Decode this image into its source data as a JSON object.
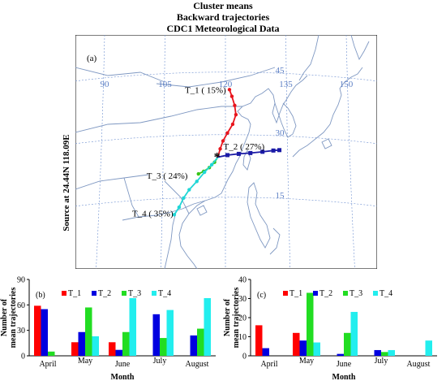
{
  "header": {
    "line1": "Cluster means",
    "line2": "Backward trajectories",
    "line3": "CDC1 Meteorological Data"
  },
  "side_label": "Source  at  24.44N 118.09E",
  "map": {
    "panel_label": "(a)",
    "lon_labels": [
      "90",
      "105",
      "120",
      "135",
      "150"
    ],
    "lat_labels": [
      "45",
      "30",
      "15"
    ],
    "clusters": [
      {
        "label": "T_1  ( 15%)",
        "color": "#e8141c",
        "path": [
          [
            118.1,
            24.4
          ],
          [
            118.7,
            26.4
          ],
          [
            119.4,
            28.3
          ],
          [
            120.5,
            30.2
          ],
          [
            121.8,
            32.3
          ],
          [
            122.6,
            34.6
          ],
          [
            122.3,
            36.8
          ],
          [
            121.6,
            39.0
          ],
          [
            121.0,
            40.6
          ]
        ]
      },
      {
        "label": "T_2  ( 27%)",
        "color": "#1a1aa6",
        "path": [
          [
            118.1,
            24.4
          ],
          [
            120.5,
            24.9
          ],
          [
            123.3,
            25.2
          ],
          [
            126.2,
            25.4
          ],
          [
            129.2,
            25.7
          ],
          [
            131.9,
            26.0
          ],
          [
            133.4,
            26.1
          ]
        ]
      },
      {
        "label": "T_3  ( 24%)",
        "color": "#38c418",
        "path": [
          [
            118.1,
            24.4
          ],
          [
            117.3,
            23.2
          ],
          [
            116.0,
            21.9
          ],
          [
            114.6,
            21.0
          ],
          [
            113.3,
            20.4
          ]
        ]
      },
      {
        "label": "T_4  ( 35%)",
        "color": "#20d6d6",
        "path": [
          [
            118.1,
            24.4
          ],
          [
            116.6,
            22.6
          ],
          [
            114.8,
            20.8
          ],
          [
            112.9,
            18.6
          ],
          [
            111.0,
            16.6
          ],
          [
            109.6,
            14.6
          ],
          [
            108.5,
            12.4
          ],
          [
            107.3,
            10.6
          ]
        ]
      }
    ],
    "source_marker": "source-star"
  },
  "chart_data": [
    {
      "type": "bar",
      "panel_label": "(b)",
      "categories": [
        "April",
        "May",
        "June",
        "July",
        "August"
      ],
      "series": [
        {
          "name": "T_1",
          "color": "#ff0000",
          "values": [
            59,
            16,
            16,
            0,
            0
          ]
        },
        {
          "name": "T_2",
          "color": "#0000e0",
          "values": [
            55,
            28,
            7,
            49,
            24
          ]
        },
        {
          "name": "T_3",
          "color": "#22dd22",
          "values": [
            5,
            57,
            28,
            21,
            32
          ]
        },
        {
          "name": "T_4",
          "color": "#22eeee",
          "values": [
            0,
            23,
            68,
            54,
            68
          ]
        }
      ],
      "xlabel": "Month",
      "ylabel": "Number of  mean trajectories",
      "ylim": [
        0,
        90
      ],
      "yticks": [
        "0",
        "30",
        "60",
        "90"
      ],
      "legend": "top"
    },
    {
      "type": "bar",
      "panel_label": "(c)",
      "categories": [
        "April",
        "May",
        "June",
        "July",
        "August"
      ],
      "series": [
        {
          "name": "T_1",
          "color": "#ff0000",
          "values": [
            16,
            12,
            0,
            0,
            0
          ]
        },
        {
          "name": "T_2",
          "color": "#0000e0",
          "values": [
            4,
            8,
            1,
            3,
            0
          ]
        },
        {
          "name": "T_3",
          "color": "#22dd22",
          "values": [
            0,
            33,
            12,
            2,
            0
          ]
        },
        {
          "name": "T_4",
          "color": "#22eeee",
          "values": [
            0,
            7,
            23,
            3,
            8
          ]
        }
      ],
      "xlabel": "Month",
      "ylabel": "Number of mean trajectories",
      "ylim": [
        0,
        40
      ],
      "yticks": [
        "0",
        "10",
        "20",
        "30",
        "40"
      ],
      "legend": "top"
    }
  ]
}
